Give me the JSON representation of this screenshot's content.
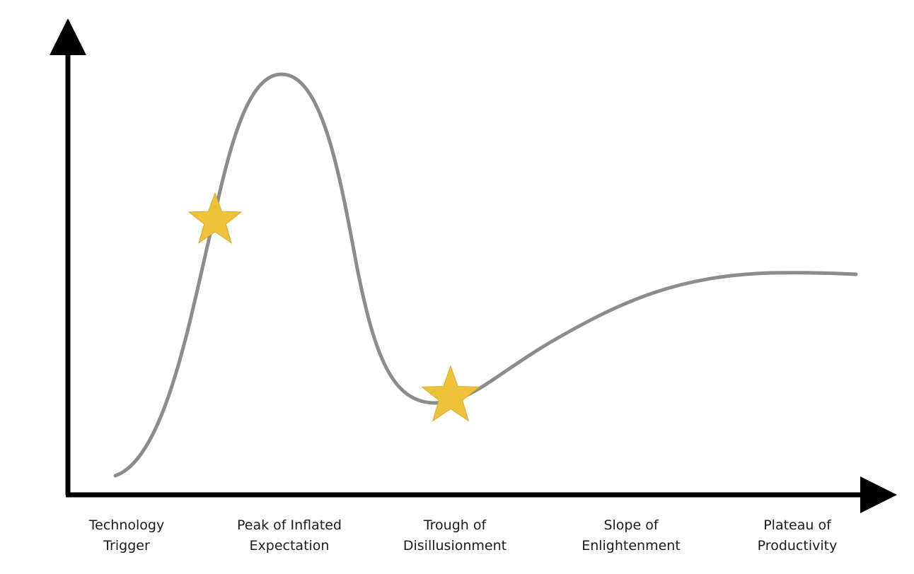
{
  "diagram": {
    "curve_color": "#8c8c8c",
    "axis_color": "#000000",
    "star_color": "#eec33a",
    "star_stroke": "#d9a92a",
    "markers": [
      {
        "name": "star-on-rise",
        "shape": "star"
      },
      {
        "name": "star-at-trough",
        "shape": "star"
      }
    ],
    "phases": [
      {
        "line1": "Technology",
        "line2": "Trigger"
      },
      {
        "line1": "Peak of Inflated",
        "line2": "Expectation"
      },
      {
        "line1": "Trough of",
        "line2": "Disillusionment"
      },
      {
        "line1": "Slope of",
        "line2": "Enlightenment"
      },
      {
        "line1": "Plateau of",
        "line2": "Productivity"
      }
    ]
  }
}
